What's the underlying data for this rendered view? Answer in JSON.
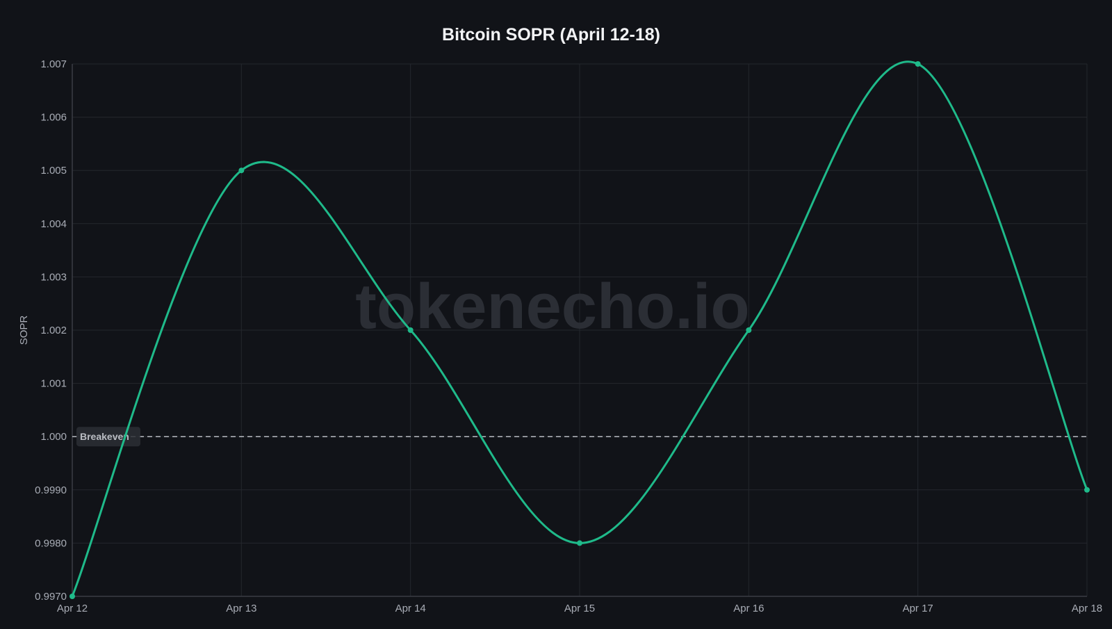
{
  "chart_data": {
    "type": "line",
    "title": "Bitcoin SOPR (April 12-18)",
    "xlabel": "",
    "ylabel": "SOPR",
    "categories": [
      "Apr 12",
      "Apr 13",
      "Apr 14",
      "Apr 15",
      "Apr 16",
      "Apr 17",
      "Apr 18"
    ],
    "series": [
      {
        "values": [
          0.997,
          1.005,
          1.002,
          0.998,
          1.002,
          1.007,
          0.999
        ]
      }
    ],
    "ylim": [
      0.997,
      1.007
    ],
    "y_ticks": [
      {
        "value": 0.997,
        "label": "0.9970"
      },
      {
        "value": 0.998,
        "label": "0.9980"
      },
      {
        "value": 0.999,
        "label": "0.9990"
      },
      {
        "value": 1.0,
        "label": "1.000"
      },
      {
        "value": 1.001,
        "label": "1.001"
      },
      {
        "value": 1.002,
        "label": "1.002"
      },
      {
        "value": 1.003,
        "label": "1.003"
      },
      {
        "value": 1.004,
        "label": "1.004"
      },
      {
        "value": 1.005,
        "label": "1.005"
      },
      {
        "value": 1.006,
        "label": "1.006"
      },
      {
        "value": 1.007,
        "label": "1.007"
      }
    ],
    "reference_line": {
      "value": 1.0,
      "label": "Breakeven",
      "style": "dashed"
    },
    "watermark": "tokenecho.io",
    "grid": true,
    "colors": {
      "background": "#111318",
      "line": "#1fba8a",
      "grid": "#24272d",
      "axis": "#3a3d44",
      "tick_text": "#a9adb6",
      "title_text": "#f2f3f5",
      "reference": "#b9bcc2",
      "watermark": "#2b2e35",
      "label_bg": "#2c2f35"
    }
  }
}
